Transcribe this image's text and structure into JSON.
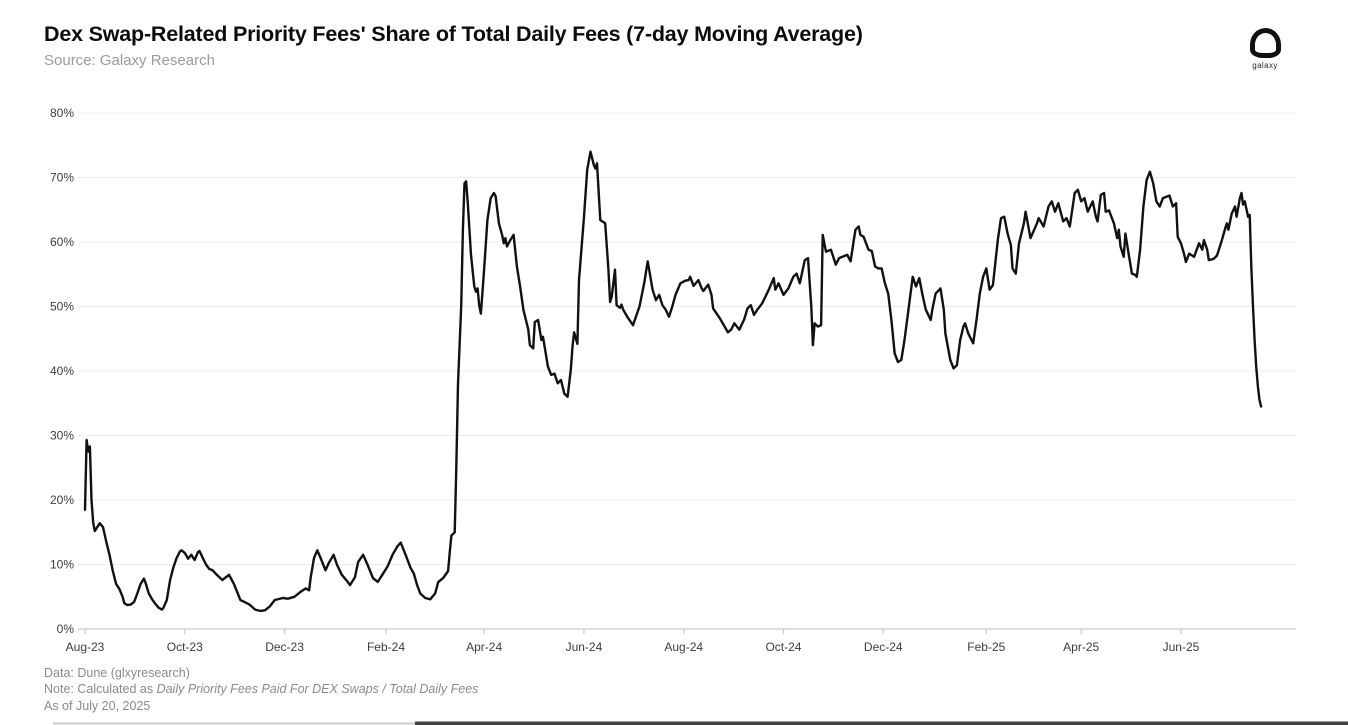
{
  "header": {
    "title": "Dex Swap-Related Priority Fees' Share of Total Daily Fees (7-day Moving Average)",
    "source": "Source: Galaxy Research"
  },
  "logo": {
    "label": "galaxy"
  },
  "footer": {
    "data_line": "Data: Dune (glxyresearch)",
    "note_prefix": "Note: Calculated as ",
    "note_italic": "Daily Priority Fees Paid For DEX Swaps / Total Daily Fees",
    "as_of": "As of July 20, 2025"
  },
  "colors": {
    "background": "#ffffff",
    "line": "#111111",
    "grid": "#ececec",
    "axis": "#c9c9c9",
    "tick_label": "#3c3c3c",
    "muted_text": "#8a8a8a",
    "title_text": "#0c0c0c"
  },
  "chart_data": {
    "type": "line",
    "title": "Dex Swap-Related Priority Fees' Share of Total Daily Fees (7-day Moving Average)",
    "series_name": "DEX swap-related priority fees share of total daily fees (7-day MA)",
    "x_unit": "days since 2023-08-01",
    "y_unit": "%",
    "ylim": [
      0,
      80
    ],
    "grid": true,
    "legend": false,
    "y_ticks": [
      {
        "value": 0,
        "label": "0%"
      },
      {
        "value": 10,
        "label": "10%"
      },
      {
        "value": 20,
        "label": "20%"
      },
      {
        "value": 30,
        "label": "30%"
      },
      {
        "value": 40,
        "label": "40%"
      },
      {
        "value": 50,
        "label": "50%"
      },
      {
        "value": 60,
        "label": "60%"
      },
      {
        "value": 70,
        "label": "70%"
      },
      {
        "value": 80,
        "label": "80%"
      }
    ],
    "x_ticks": [
      {
        "day": 0,
        "label": "Aug-23"
      },
      {
        "day": 61,
        "label": "Oct-23"
      },
      {
        "day": 122,
        "label": "Dec-23"
      },
      {
        "day": 184,
        "label": "Feb-24"
      },
      {
        "day": 244,
        "label": "Apr-24"
      },
      {
        "day": 305,
        "label": "Jun-24"
      },
      {
        "day": 366,
        "label": "Aug-24"
      },
      {
        "day": 427,
        "label": "Oct-24"
      },
      {
        "day": 488,
        "label": "Dec-24"
      },
      {
        "day": 551,
        "label": "Feb-25"
      },
      {
        "day": 609,
        "label": "Apr-25"
      },
      {
        "day": 670,
        "label": "Jun-25"
      }
    ],
    "points": [
      [
        0,
        18.5
      ],
      [
        1,
        29.3
      ],
      [
        2,
        27.5
      ],
      [
        3,
        28.3
      ],
      [
        4,
        20.0
      ],
      [
        5,
        16.5
      ],
      [
        6,
        15.2
      ],
      [
        8,
        16.0
      ],
      [
        9,
        16.4
      ],
      [
        11,
        15.8
      ],
      [
        13,
        13.5
      ],
      [
        15,
        11.5
      ],
      [
        17,
        9.0
      ],
      [
        19,
        7.0
      ],
      [
        21,
        6.2
      ],
      [
        23,
        5.0
      ],
      [
        24,
        4.0
      ],
      [
        26,
        3.7
      ],
      [
        28,
        3.8
      ],
      [
        30,
        4.2
      ],
      [
        32,
        5.5
      ],
      [
        34,
        7.0
      ],
      [
        36,
        7.8
      ],
      [
        37,
        7.2
      ],
      [
        39,
        5.5
      ],
      [
        41,
        4.6
      ],
      [
        43,
        3.9
      ],
      [
        45,
        3.3
      ],
      [
        47,
        3.0
      ],
      [
        48,
        3.3
      ],
      [
        50,
        4.5
      ],
      [
        52,
        7.6
      ],
      [
        54,
        9.5
      ],
      [
        56,
        11.0
      ],
      [
        58,
        12.0
      ],
      [
        59,
        12.2
      ],
      [
        61,
        11.8
      ],
      [
        63,
        10.9
      ],
      [
        65,
        11.5
      ],
      [
        67,
        10.7
      ],
      [
        69,
        11.9
      ],
      [
        70,
        12.1
      ],
      [
        72,
        11.0
      ],
      [
        74,
        10.0
      ],
      [
        76,
        9.3
      ],
      [
        78,
        9.1
      ],
      [
        81,
        8.3
      ],
      [
        84,
        7.6
      ],
      [
        88,
        8.4
      ],
      [
        91,
        7.0
      ],
      [
        95,
        4.5
      ],
      [
        99,
        4.0
      ],
      [
        101,
        3.7
      ],
      [
        104,
        3.0
      ],
      [
        107,
        2.8
      ],
      [
        110,
        2.9
      ],
      [
        113,
        3.5
      ],
      [
        116,
        4.5
      ],
      [
        121,
        4.8
      ],
      [
        124,
        4.7
      ],
      [
        128,
        5.0
      ],
      [
        132,
        5.8
      ],
      [
        135,
        6.3
      ],
      [
        137,
        6.0
      ],
      [
        138,
        8.0
      ],
      [
        140,
        11.0
      ],
      [
        142,
        12.2
      ],
      [
        144,
        11.0
      ],
      [
        147,
        9.1
      ],
      [
        149,
        10.2
      ],
      [
        152,
        11.5
      ],
      [
        154,
        10.0
      ],
      [
        157,
        8.4
      ],
      [
        160,
        7.5
      ],
      [
        162,
        6.8
      ],
      [
        165,
        8.0
      ],
      [
        167,
        10.4
      ],
      [
        170,
        11.5
      ],
      [
        173,
        9.8
      ],
      [
        176,
        7.9
      ],
      [
        179,
        7.3
      ],
      [
        182,
        8.5
      ],
      [
        185,
        9.7
      ],
      [
        188,
        11.5
      ],
      [
        191,
        12.8
      ],
      [
        193,
        13.4
      ],
      [
        196,
        11.5
      ],
      [
        199,
        9.5
      ],
      [
        201,
        8.6
      ],
      [
        203,
        6.8
      ],
      [
        205,
        5.5
      ],
      [
        208,
        4.8
      ],
      [
        211,
        4.6
      ],
      [
        214,
        5.5
      ],
      [
        216,
        7.3
      ],
      [
        219,
        7.9
      ],
      [
        222,
        9.0
      ],
      [
        223,
        12.0
      ],
      [
        224,
        14.5
      ],
      [
        226,
        15.0
      ],
      [
        227,
        25.0
      ],
      [
        228,
        38.0
      ],
      [
        230,
        50.0
      ],
      [
        231,
        62.0
      ],
      [
        232,
        69.1
      ],
      [
        233,
        69.4
      ],
      [
        234,
        66.0
      ],
      [
        236,
        58.0
      ],
      [
        238,
        53.1
      ],
      [
        239,
        52.3
      ],
      [
        240,
        52.8
      ],
      [
        241,
        50.2
      ],
      [
        242,
        48.9
      ],
      [
        244,
        55.7
      ],
      [
        246,
        63.4
      ],
      [
        248,
        66.8
      ],
      [
        250,
        67.6
      ],
      [
        251,
        67.1
      ],
      [
        253,
        62.9
      ],
      [
        255,
        61.1
      ],
      [
        256,
        59.8
      ],
      [
        257,
        60.6
      ],
      [
        258,
        59.3
      ],
      [
        260,
        60.3
      ],
      [
        262,
        61.1
      ],
      [
        264,
        56.2
      ],
      [
        266,
        53.1
      ],
      [
        268,
        49.5
      ],
      [
        271,
        46.4
      ],
      [
        272,
        44.0
      ],
      [
        274,
        43.5
      ],
      [
        275,
        47.6
      ],
      [
        277,
        47.9
      ],
      [
        279,
        44.8
      ],
      [
        280,
        45.3
      ],
      [
        283,
        40.7
      ],
      [
        285,
        39.4
      ],
      [
        287,
        39.6
      ],
      [
        289,
        38.1
      ],
      [
        291,
        38.6
      ],
      [
        293,
        36.5
      ],
      [
        295,
        36.0
      ],
      [
        297,
        40.2
      ],
      [
        298,
        43.8
      ],
      [
        299,
        46.0
      ],
      [
        301,
        44.2
      ],
      [
        302,
        54.1
      ],
      [
        305,
        63.7
      ],
      [
        307,
        71.2
      ],
      [
        309,
        74.0
      ],
      [
        311,
        72.0
      ],
      [
        312,
        71.4
      ],
      [
        313,
        72.2
      ],
      [
        315,
        63.4
      ],
      [
        318,
        62.9
      ],
      [
        320,
        55.5
      ],
      [
        321,
        50.7
      ],
      [
        322,
        51.5
      ],
      [
        324,
        55.7
      ],
      [
        325,
        50.2
      ],
      [
        327,
        49.8
      ],
      [
        328,
        50.3
      ],
      [
        329,
        49.5
      ],
      [
        332,
        48.2
      ],
      [
        335,
        47.1
      ],
      [
        339,
        50.0
      ],
      [
        342,
        53.8
      ],
      [
        344,
        57.0
      ],
      [
        347,
        52.6
      ],
      [
        349,
        51.0
      ],
      [
        351,
        51.8
      ],
      [
        353,
        50.2
      ],
      [
        355,
        49.5
      ],
      [
        357,
        48.4
      ],
      [
        359,
        50.0
      ],
      [
        361,
        51.8
      ],
      [
        364,
        53.6
      ],
      [
        367,
        54.0
      ],
      [
        369,
        54.1
      ],
      [
        370,
        54.6
      ],
      [
        372,
        53.2
      ],
      [
        375,
        54.1
      ],
      [
        377,
        52.8
      ],
      [
        378,
        52.4
      ],
      [
        381,
        53.4
      ],
      [
        383,
        51.8
      ],
      [
        384,
        49.7
      ],
      [
        388,
        48.2
      ],
      [
        391,
        46.9
      ],
      [
        393,
        46.0
      ],
      [
        395,
        46.4
      ],
      [
        397,
        47.4
      ],
      [
        400,
        46.4
      ],
      [
        403,
        48.0
      ],
      [
        405,
        49.7
      ],
      [
        407,
        50.2
      ],
      [
        409,
        48.7
      ],
      [
        411,
        49.5
      ],
      [
        414,
        50.5
      ],
      [
        418,
        52.6
      ],
      [
        421,
        54.4
      ],
      [
        422,
        52.6
      ],
      [
        424,
        53.6
      ],
      [
        427,
        51.8
      ],
      [
        430,
        52.8
      ],
      [
        433,
        54.6
      ],
      [
        435,
        55.1
      ],
      [
        437,
        53.6
      ],
      [
        440,
        57.2
      ],
      [
        442,
        57.5
      ],
      [
        444,
        50.0
      ],
      [
        445,
        44.0
      ],
      [
        446,
        47.4
      ],
      [
        448,
        46.9
      ],
      [
        450,
        47.1
      ],
      [
        451,
        61.1
      ],
      [
        453,
        58.5
      ],
      [
        456,
        58.8
      ],
      [
        459,
        56.5
      ],
      [
        461,
        57.5
      ],
      [
        463,
        57.7
      ],
      [
        466,
        58.0
      ],
      [
        468,
        57.0
      ],
      [
        470,
        60.3
      ],
      [
        471,
        61.9
      ],
      [
        473,
        62.4
      ],
      [
        474,
        61.1
      ],
      [
        476,
        60.8
      ],
      [
        479,
        58.8
      ],
      [
        481,
        58.6
      ],
      [
        483,
        56.2
      ],
      [
        485,
        55.9
      ],
      [
        487,
        55.9
      ],
      [
        489,
        53.6
      ],
      [
        491,
        52.0
      ],
      [
        493,
        47.9
      ],
      [
        495,
        42.7
      ],
      [
        497,
        41.4
      ],
      [
        499,
        41.7
      ],
      [
        501,
        44.8
      ],
      [
        503,
        48.7
      ],
      [
        506,
        54.6
      ],
      [
        508,
        53.1
      ],
      [
        510,
        54.4
      ],
      [
        512,
        51.8
      ],
      [
        514,
        49.5
      ],
      [
        517,
        47.9
      ],
      [
        518,
        49.5
      ],
      [
        520,
        52.0
      ],
      [
        523,
        52.8
      ],
      [
        525,
        49.5
      ],
      [
        526,
        45.8
      ],
      [
        529,
        41.7
      ],
      [
        531,
        40.4
      ],
      [
        533,
        40.9
      ],
      [
        535,
        44.8
      ],
      [
        537,
        46.9
      ],
      [
        538,
        47.4
      ],
      [
        540,
        45.8
      ],
      [
        543,
        44.3
      ],
      [
        545,
        47.9
      ],
      [
        547,
        52.0
      ],
      [
        549,
        54.6
      ],
      [
        551,
        55.9
      ],
      [
        553,
        52.6
      ],
      [
        555,
        53.3
      ],
      [
        558,
        60.3
      ],
      [
        560,
        63.7
      ],
      [
        562,
        63.9
      ],
      [
        564,
        61.3
      ],
      [
        566,
        59.5
      ],
      [
        567,
        55.9
      ],
      [
        569,
        55.1
      ],
      [
        571,
        59.8
      ],
      [
        574,
        62.9
      ],
      [
        575,
        64.7
      ],
      [
        578,
        60.6
      ],
      [
        582,
        62.9
      ],
      [
        583,
        63.7
      ],
      [
        586,
        62.4
      ],
      [
        589,
        65.5
      ],
      [
        591,
        66.3
      ],
      [
        593,
        64.7
      ],
      [
        595,
        66.0
      ],
      [
        598,
        63.2
      ],
      [
        600,
        63.7
      ],
      [
        602,
        62.4
      ],
      [
        605,
        67.6
      ],
      [
        607,
        68.1
      ],
      [
        609,
        66.3
      ],
      [
        611,
        66.8
      ],
      [
        613,
        64.7
      ],
      [
        616,
        66.3
      ],
      [
        618,
        63.9
      ],
      [
        619,
        63.2
      ],
      [
        621,
        67.3
      ],
      [
        623,
        67.6
      ],
      [
        624,
        64.7
      ],
      [
        626,
        64.9
      ],
      [
        629,
        62.9
      ],
      [
        631,
        60.6
      ],
      [
        632,
        61.9
      ],
      [
        633,
        59.3
      ],
      [
        635,
        57.7
      ],
      [
        636,
        61.3
      ],
      [
        638,
        58.2
      ],
      [
        640,
        55.1
      ],
      [
        642,
        54.9
      ],
      [
        643,
        54.6
      ],
      [
        645,
        58.8
      ],
      [
        647,
        65.5
      ],
      [
        649,
        69.6
      ],
      [
        651,
        70.9
      ],
      [
        653,
        69.1
      ],
      [
        655,
        66.3
      ],
      [
        657,
        65.5
      ],
      [
        659,
        66.8
      ],
      [
        661,
        67.0
      ],
      [
        663,
        67.2
      ],
      [
        665,
        65.5
      ],
      [
        667,
        66.0
      ],
      [
        668,
        60.8
      ],
      [
        670,
        59.8
      ],
      [
        672,
        58.0
      ],
      [
        673,
        56.9
      ],
      [
        675,
        58.2
      ],
      [
        678,
        57.7
      ],
      [
        681,
        59.8
      ],
      [
        683,
        58.8
      ],
      [
        684,
        60.3
      ],
      [
        686,
        58.8
      ],
      [
        687,
        57.2
      ],
      [
        690,
        57.4
      ],
      [
        692,
        57.9
      ],
      [
        695,
        60.3
      ],
      [
        697,
        62.1
      ],
      [
        698,
        62.9
      ],
      [
        699,
        61.9
      ],
      [
        701,
        64.4
      ],
      [
        703,
        65.5
      ],
      [
        704,
        63.9
      ],
      [
        706,
        66.8
      ],
      [
        707,
        67.6
      ],
      [
        708,
        65.8
      ],
      [
        709,
        66.3
      ],
      [
        711,
        63.9
      ],
      [
        712,
        64.2
      ],
      [
        713,
        56.2
      ],
      [
        714,
        50.0
      ],
      [
        715,
        44.8
      ],
      [
        716,
        40.7
      ],
      [
        717,
        37.6
      ],
      [
        718,
        35.5
      ],
      [
        719,
        34.5
      ]
    ]
  }
}
